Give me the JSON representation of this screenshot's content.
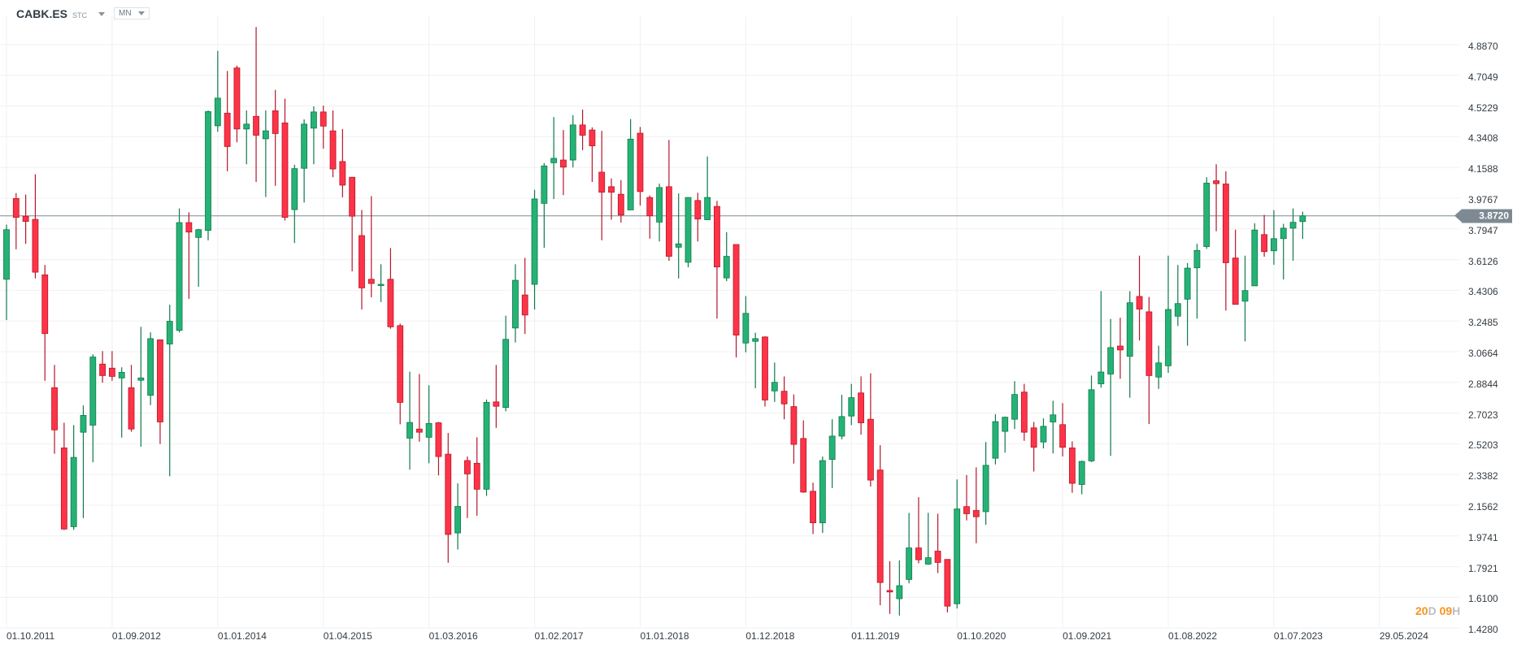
{
  "header": {
    "symbol": "CABK.ES",
    "type": "STC",
    "timeframe": "MN"
  },
  "countdown": {
    "days": "20",
    "days_unit": "D",
    "hours": "09",
    "hours_unit": "H"
  },
  "colors": {
    "up": "#26b276",
    "up_border": "#0e7a4a",
    "down": "#ff3347",
    "down_border": "#b5172b",
    "last_price": "#7d8a93",
    "countdown": "#f7931e"
  },
  "chart_data": {
    "type": "candlestick",
    "last_price": "3.8720",
    "y_ticks": [
      "4.8870",
      "4.7049",
      "4.5229",
      "4.3408",
      "4.1588",
      "3.9767",
      "3.7947",
      "3.6126",
      "3.4306",
      "3.2485",
      "3.0664",
      "2.8844",
      "2.7023",
      "2.5203",
      "2.3382",
      "2.1562",
      "1.9741",
      "1.7921",
      "1.6100",
      "1.4280"
    ],
    "x_ticks": [
      {
        "label": "01.10.2011",
        "index": 0
      },
      {
        "label": "01.09.2012",
        "index": 11
      },
      {
        "label": "01.01.2014",
        "index": 22
      },
      {
        "label": "01.04.2015",
        "index": 33
      },
      {
        "label": "01.03.2016",
        "index": 44
      },
      {
        "label": "01.02.2017",
        "index": 55
      },
      {
        "label": "01.01.2018",
        "index": 66
      },
      {
        "label": "01.12.2018",
        "index": 77
      },
      {
        "label": "01.11.2019",
        "index": 88
      },
      {
        "label": "01.10.2020",
        "index": 99
      },
      {
        "label": "01.09.2021",
        "index": 110
      },
      {
        "label": "01.08.2022",
        "index": 121
      },
      {
        "label": "01.07.2023",
        "index": 132
      },
      {
        "label": "29.05.2024",
        "index": 143
      }
    ],
    "ylim": [
      1.428,
      4.887
    ],
    "grid": true,
    "ohlc_fields": [
      "open",
      "high",
      "low",
      "close"
    ],
    "candles": [
      [
        3.496,
        3.82,
        3.254,
        3.79
      ],
      [
        3.975,
        4.007,
        3.674,
        3.863
      ],
      [
        3.87,
        3.998,
        3.706,
        3.839
      ],
      [
        3.851,
        4.119,
        3.501,
        3.538
      ],
      [
        3.522,
        3.581,
        2.894,
        3.174
      ],
      [
        2.853,
        2.988,
        2.461,
        2.603
      ],
      [
        2.496,
        2.645,
        2.01,
        2.015
      ],
      [
        2.029,
        2.631,
        2.01,
        2.44
      ],
      [
        2.589,
        2.748,
        2.08,
        2.689
      ],
      [
        2.631,
        3.051,
        2.411,
        3.035
      ],
      [
        2.993,
        3.07,
        2.883,
        2.925
      ],
      [
        2.969,
        3.07,
        2.894,
        2.92
      ],
      [
        2.911,
        2.974,
        2.557,
        2.944
      ],
      [
        2.853,
        2.988,
        2.592,
        2.608
      ],
      [
        2.897,
        3.214,
        2.503,
        2.911
      ],
      [
        2.808,
        3.181,
        2.75,
        3.144
      ],
      [
        3.137,
        3.137,
        2.519,
        2.65
      ],
      [
        3.112,
        3.345,
        2.328,
        3.247
      ],
      [
        3.193,
        3.916,
        3.181,
        3.832
      ],
      [
        3.832,
        3.893,
        3.38,
        3.776
      ],
      [
        3.744,
        3.795,
        3.452,
        3.79
      ],
      [
        3.786,
        4.497,
        3.727,
        4.49
      ],
      [
        4.406,
        4.85,
        4.371,
        4.57
      ],
      [
        4.481,
        4.731,
        4.136,
        4.283
      ],
      [
        4.749,
        4.763,
        4.308,
        4.387
      ],
      [
        4.387,
        4.497,
        4.178,
        4.416
      ],
      [
        4.462,
        4.992,
        4.073,
        4.35
      ],
      [
        4.329,
        4.497,
        3.984,
        4.376
      ],
      [
        4.495,
        4.619,
        4.05,
        4.36
      ],
      [
        4.423,
        4.567,
        3.844,
        3.863
      ],
      [
        3.909,
        4.175,
        3.711,
        4.152
      ],
      [
        4.154,
        4.444,
        3.951,
        4.416
      ],
      [
        4.392,
        4.521,
        4.178,
        4.488
      ],
      [
        4.488,
        4.526,
        4.271,
        4.404
      ],
      [
        4.376,
        4.497,
        4.101,
        4.15
      ],
      [
        4.194,
        4.387,
        3.982,
        4.054
      ],
      [
        4.101,
        4.101,
        3.543,
        3.87
      ],
      [
        3.755,
        3.907,
        3.317,
        3.445
      ],
      [
        3.496,
        3.989,
        3.389,
        3.471
      ],
      [
        3.459,
        3.585,
        3.361,
        3.466
      ],
      [
        3.496,
        3.681,
        3.203,
        3.214
      ],
      [
        3.221,
        3.233,
        2.636,
        2.766
      ],
      [
        2.554,
        2.948,
        2.367,
        2.647
      ],
      [
        2.608,
        2.934,
        2.533,
        2.589
      ],
      [
        2.559,
        2.867,
        2.405,
        2.641
      ],
      [
        2.645,
        2.65,
        2.333,
        2.445
      ],
      [
        2.459,
        2.585,
        1.815,
        1.983
      ],
      [
        1.992,
        2.286,
        1.894,
        2.149
      ],
      [
        2.421,
        2.445,
        2.08,
        2.342
      ],
      [
        2.405,
        2.559,
        2.094,
        2.251
      ],
      [
        2.251,
        2.783,
        2.211,
        2.766
      ],
      [
        2.769,
        2.988,
        2.615,
        2.743
      ],
      [
        2.736,
        3.28,
        2.713,
        3.14
      ],
      [
        3.207,
        3.585,
        3.121,
        3.49
      ],
      [
        3.403,
        3.623,
        3.172,
        3.284
      ],
      [
        3.466,
        4.026,
        3.317,
        3.972
      ],
      [
        3.946,
        4.185,
        3.683,
        4.168
      ],
      [
        4.187,
        4.458,
        3.972,
        4.213
      ],
      [
        4.203,
        4.381,
        3.995,
        4.161
      ],
      [
        4.203,
        4.469,
        4.159,
        4.411
      ],
      [
        4.411,
        4.502,
        4.262,
        4.35
      ],
      [
        4.381,
        4.397,
        4.073,
        4.287
      ],
      [
        4.131,
        4.376,
        3.727,
        4.012
      ],
      [
        4.045,
        4.094,
        3.849,
        4.012
      ],
      [
        4.0,
        4.084,
        3.832,
        3.877
      ],
      [
        3.907,
        4.446,
        3.907,
        4.327
      ],
      [
        4.362,
        4.399,
        3.933,
        4.016
      ],
      [
        3.981,
        3.993,
        3.737,
        3.872
      ],
      [
        3.835,
        4.063,
        3.72,
        4.04
      ],
      [
        4.045,
        4.322,
        3.606,
        3.632
      ],
      [
        3.686,
        4.005,
        3.501,
        3.706
      ],
      [
        3.597,
        3.981,
        3.567,
        3.981
      ],
      [
        3.963,
        4.009,
        3.72,
        3.853
      ],
      [
        3.849,
        4.224,
        3.849,
        3.981
      ],
      [
        3.928,
        3.961,
        3.263,
        3.569
      ],
      [
        3.504,
        3.776,
        3.485,
        3.632
      ],
      [
        3.702,
        3.702,
        3.032,
        3.165
      ],
      [
        3.118,
        3.396,
        3.063,
        3.294
      ],
      [
        3.128,
        3.179,
        2.85,
        3.144
      ],
      [
        3.154,
        3.158,
        2.741,
        2.78
      ],
      [
        2.834,
        3.002,
        2.769,
        2.885
      ],
      [
        2.832,
        2.92,
        2.666,
        2.757
      ],
      [
        2.741,
        2.813,
        2.403,
        2.517
      ],
      [
        2.552,
        2.659,
        2.23,
        2.234
      ],
      [
        2.239,
        2.29,
        1.985,
        2.052
      ],
      [
        2.052,
        2.445,
        1.992,
        2.421
      ],
      [
        2.428,
        2.666,
        2.258,
        2.566
      ],
      [
        2.566,
        2.811,
        2.547,
        2.682
      ],
      [
        2.685,
        2.876,
        2.631,
        2.794
      ],
      [
        2.822,
        2.92,
        2.575,
        2.645
      ],
      [
        2.666,
        2.939,
        2.267,
        2.305
      ],
      [
        2.365,
        2.512,
        1.563,
        1.698
      ],
      [
        1.651,
        1.824,
        1.512,
        1.642
      ],
      [
        1.602,
        1.829,
        1.502,
        1.679
      ],
      [
        1.716,
        2.111,
        1.693,
        1.903
      ],
      [
        1.903,
        2.204,
        1.812,
        1.833
      ],
      [
        1.807,
        2.111,
        1.803,
        1.845
      ],
      [
        1.884,
        2.106,
        1.754,
        1.817
      ],
      [
        1.835,
        1.835,
        1.521,
        1.558
      ],
      [
        1.572,
        2.309,
        1.544,
        2.134
      ],
      [
        2.148,
        2.335,
        2.066,
        2.106
      ],
      [
        2.125,
        2.381,
        1.931,
        2.088
      ],
      [
        2.118,
        2.531,
        2.04,
        2.393
      ],
      [
        2.435,
        2.696,
        2.398,
        2.652
      ],
      [
        2.594,
        2.682,
        2.468,
        2.678
      ],
      [
        2.666,
        2.892,
        2.608,
        2.813
      ],
      [
        2.827,
        2.876,
        2.538,
        2.589
      ],
      [
        2.615,
        2.65,
        2.356,
        2.5
      ],
      [
        2.531,
        2.671,
        2.493,
        2.624
      ],
      [
        2.65,
        2.776,
        2.463,
        2.692
      ],
      [
        2.634,
        2.762,
        2.445,
        2.5
      ],
      [
        2.496,
        2.535,
        2.23,
        2.286
      ],
      [
        2.279,
        2.421,
        2.221,
        2.416
      ],
      [
        2.419,
        2.925,
        2.412,
        2.841
      ],
      [
        2.876,
        3.426,
        2.853,
        2.946
      ],
      [
        2.934,
        3.261,
        2.449,
        3.091
      ],
      [
        3.1,
        3.268,
        2.906,
        3.077
      ],
      [
        3.039,
        3.426,
        2.794,
        3.357
      ],
      [
        3.394,
        3.636,
        3.133,
        3.319
      ],
      [
        3.303,
        3.391,
        2.638,
        2.925
      ],
      [
        2.916,
        3.102,
        2.846,
        3.0
      ],
      [
        2.983,
        3.636,
        2.941,
        3.317
      ],
      [
        3.277,
        3.581,
        3.219,
        3.352
      ],
      [
        3.378,
        3.592,
        3.102,
        3.562
      ],
      [
        3.564,
        3.706,
        3.263,
        3.667
      ],
      [
        3.69,
        4.101,
        3.676,
        4.066
      ],
      [
        4.08,
        4.178,
        3.781,
        4.063
      ],
      [
        4.061,
        4.136,
        3.31,
        3.594
      ],
      [
        3.622,
        3.79,
        3.347,
        3.347
      ],
      [
        3.366,
        3.636,
        3.128,
        3.429
      ],
      [
        3.457,
        3.828,
        3.457,
        3.788
      ],
      [
        3.761,
        3.878,
        3.63,
        3.66
      ],
      [
        3.665,
        3.906,
        3.582,
        3.737
      ],
      [
        3.737,
        3.825,
        3.495,
        3.799
      ],
      [
        3.799,
        3.916,
        3.606,
        3.834
      ],
      [
        3.838,
        3.897,
        3.735,
        3.872
      ]
    ]
  }
}
